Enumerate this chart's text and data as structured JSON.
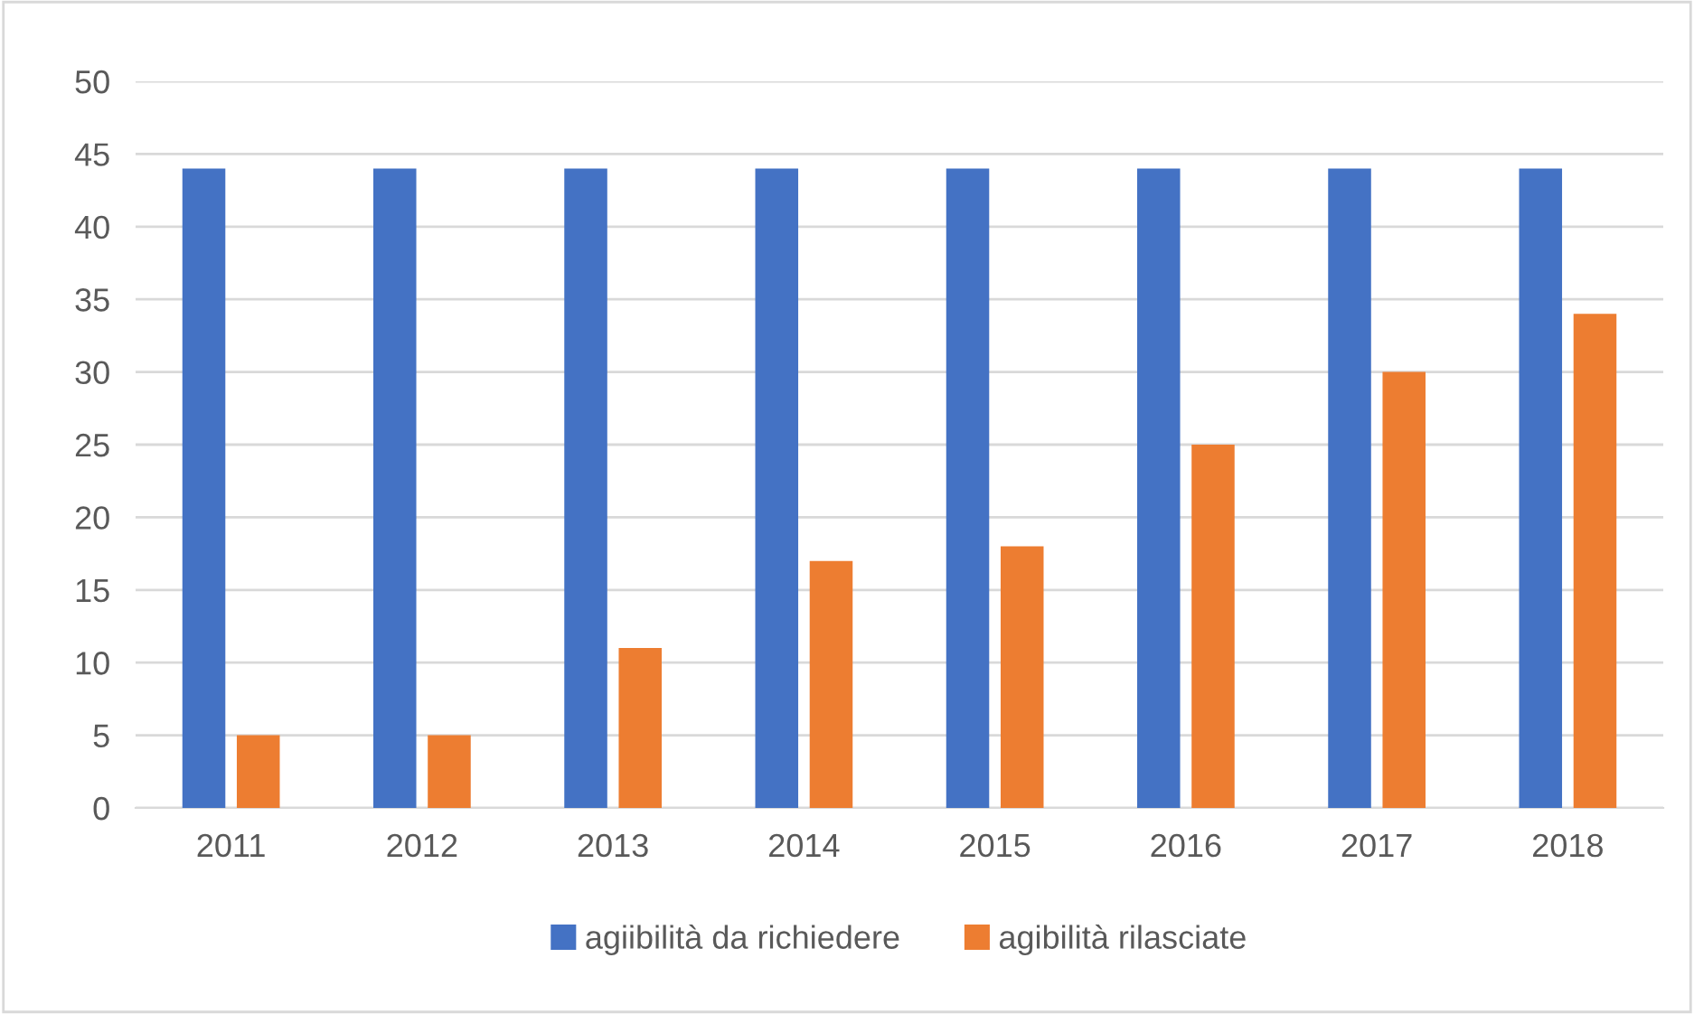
{
  "chart_data": {
    "type": "bar",
    "categories": [
      "2011",
      "2012",
      "2013",
      "2014",
      "2015",
      "2016",
      "2017",
      "2018"
    ],
    "series": [
      {
        "name": "agiibilità da richiedere",
        "color": "#4472c4",
        "values": [
          44,
          44,
          44,
          44,
          44,
          44,
          44,
          44
        ]
      },
      {
        "name": "agibilità rilasciate",
        "color": "#ed7d31",
        "values": [
          5,
          5,
          11,
          17,
          18,
          25,
          30,
          34
        ]
      }
    ],
    "ylim": [
      0,
      50
    ],
    "yticks": [
      0,
      5,
      10,
      15,
      20,
      25,
      30,
      35,
      40,
      45,
      50
    ],
    "grid": "y",
    "legend": "bottom"
  }
}
